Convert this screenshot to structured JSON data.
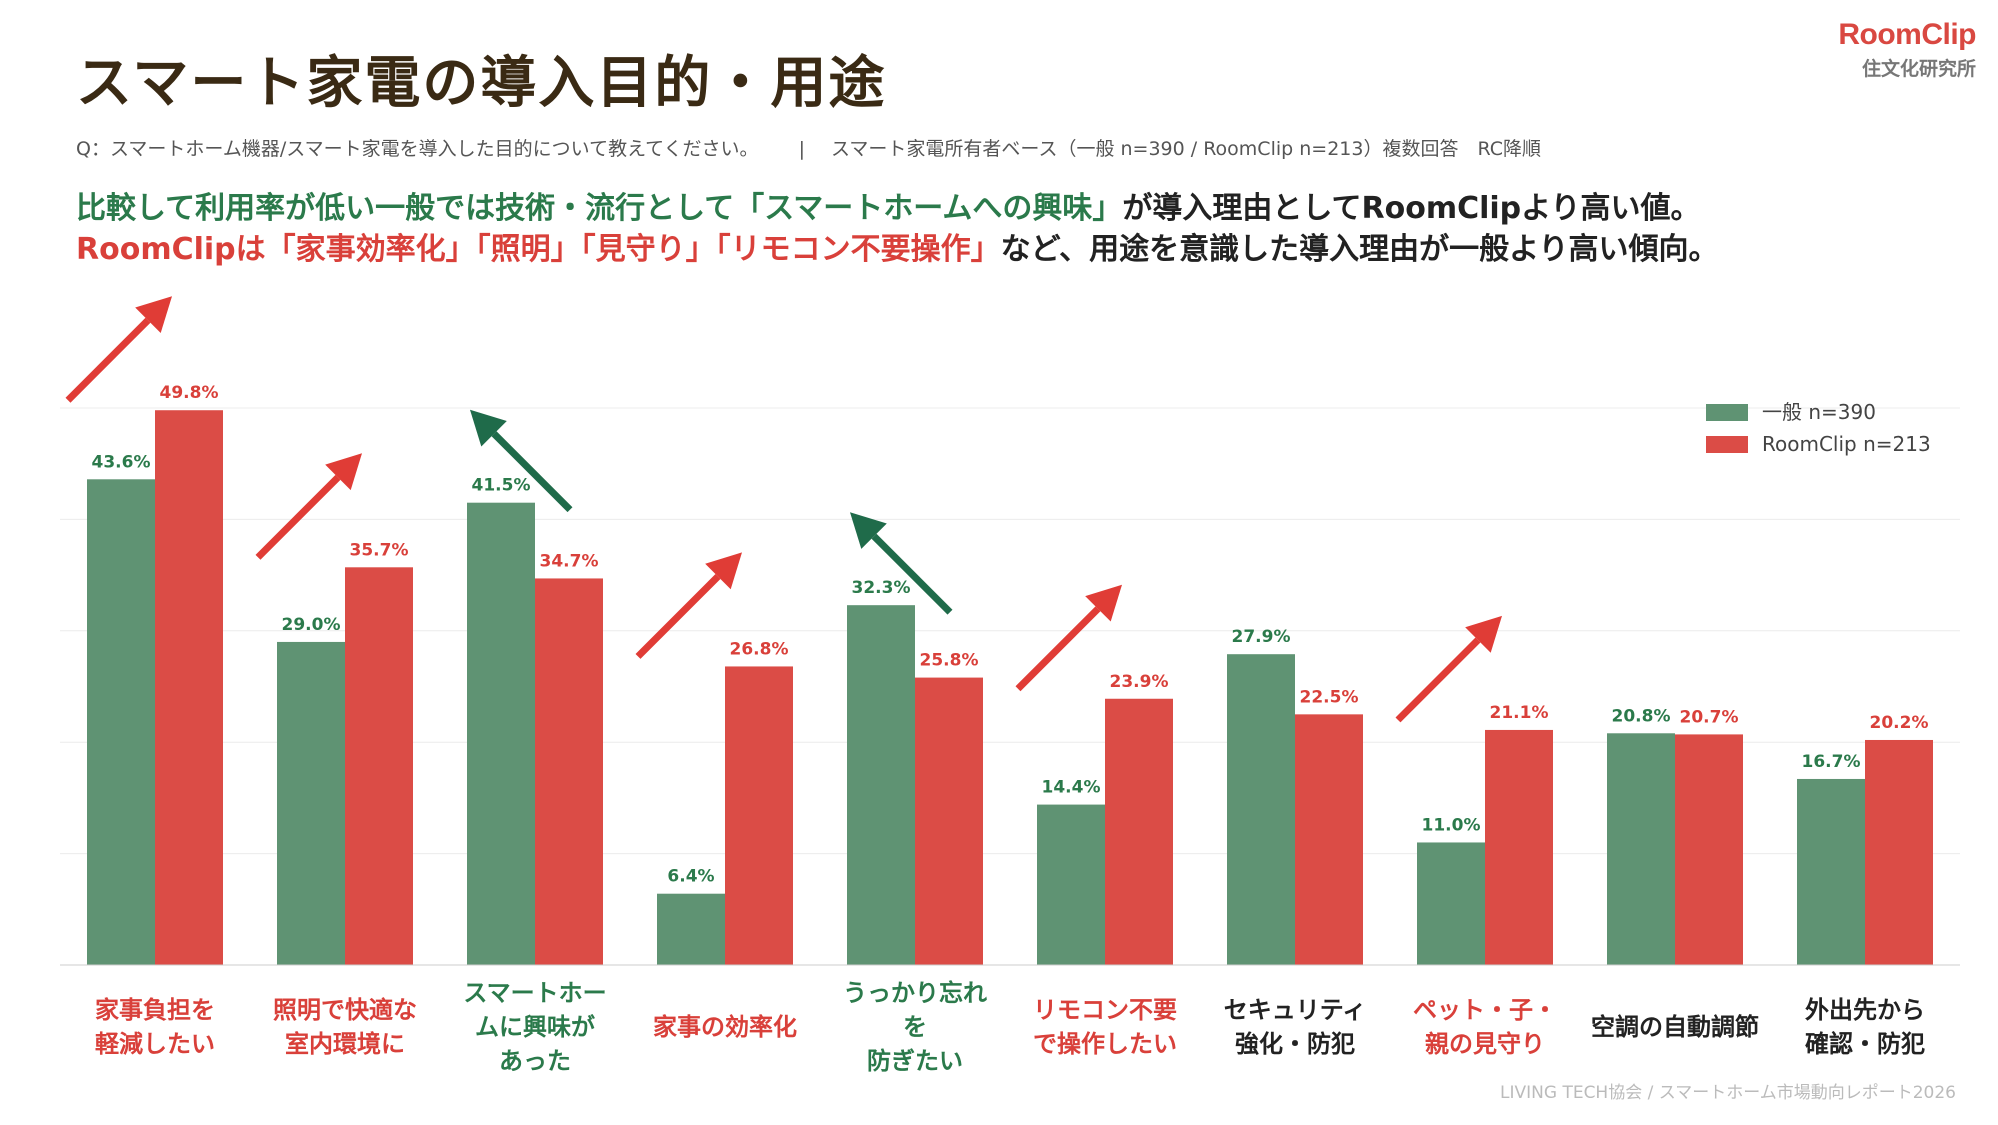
{
  "header": {
    "title": "スマート家電の導入目的・用途",
    "question": "Q：スマートホーム機器/スマート家電を導入した目的について教えてください。",
    "separator": "|",
    "base_note": "スマート家電所有者ベース（一般 n=390 / RoomClip n=213）複数回答　RC降順"
  },
  "logo": {
    "brand": "RoomClip",
    "sub": "住文化研究所"
  },
  "summary": {
    "line1_green": "比較して利用率が低い一般では技術・流行として「スマートホームへの興味」",
    "line1_dark": "が導入理由としてRoomClipより高い値。",
    "line2_red": "RoomClipは「家事効率化」「照明」「見守り」「リモコン不要操作」",
    "line2_dark": "など、用途を意識した導入理由が一般より高い傾向。"
  },
  "colors": {
    "general": "#5f9373",
    "roomclip": "#db4c46",
    "label_green": "#2b7a4b",
    "label_red": "#d9403a",
    "arrow_green": "#1f6b4a",
    "arrow_red": "#e03c36"
  },
  "chart_data": {
    "type": "bar",
    "categories": [
      "家事負担を\n軽減したい",
      "照明で快適な\n室内環境に",
      "スマートホー\nムに興味が\nあった",
      "家事の効率化",
      "うっかり忘れ\nを\n防ぎたい",
      "リモコン不要\nで操作したい",
      "セキュリティ\n強化・防犯",
      "ペット・子・\n親の見守り",
      "空調の自動調節",
      "外出先から\n確認・防犯"
    ],
    "category_colors": [
      "red",
      "red",
      "green",
      "red",
      "green",
      "red",
      "dark",
      "red",
      "dark",
      "dark"
    ],
    "series": [
      {
        "name": "一般 n=390",
        "values": [
          43.6,
          29.0,
          41.5,
          6.4,
          32.3,
          14.4,
          27.9,
          11.0,
          20.8,
          16.7
        ]
      },
      {
        "name": "RoomClip n=213",
        "values": [
          49.8,
          35.7,
          34.7,
          26.8,
          25.8,
          23.9,
          22.5,
          21.1,
          20.7,
          20.2
        ]
      }
    ],
    "value_labels": [
      [
        "43.6%",
        "29.0%",
        "41.5%",
        "6.4%",
        "32.3%",
        "14.4%",
        "27.9%",
        "11.0%",
        "20.8%",
        "16.7%"
      ],
      [
        "49.8%",
        "35.7%",
        "34.7%",
        "26.8%",
        "25.8%",
        "23.9%",
        "22.5%",
        "21.1%",
        "20.7%",
        "20.2%"
      ]
    ],
    "trend_arrows": [
      "up-red",
      "up-red",
      "green-higher",
      "up-red",
      "green-higher",
      "up-red",
      "none",
      "up-red",
      "none",
      "none"
    ],
    "ylim": [
      0,
      50
    ],
    "grid": true,
    "legend_position": "top-right"
  },
  "footer": "LIVING TECH協会 / スマートホーム市場動向レポート2026"
}
